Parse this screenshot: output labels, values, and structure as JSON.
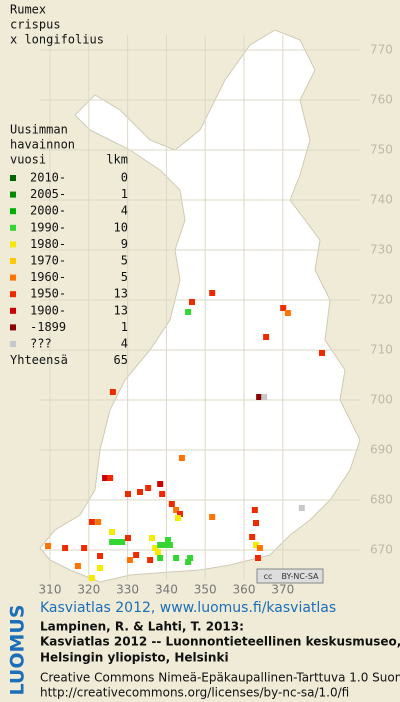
{
  "map": {
    "title": [
      "Rumex",
      "crispus",
      "x longifolius"
    ],
    "legend": {
      "heading": [
        "Uusimman",
        "havainnon",
        "vuosi"
      ],
      "count_heading": "lkm",
      "rows": [
        {
          "label": "2010-",
          "count": 0,
          "color": "#006400"
        },
        {
          "label": "2005-",
          "count": 1,
          "color": "#008a00"
        },
        {
          "label": "2000-",
          "count": 4,
          "color": "#00b000"
        },
        {
          "label": "1990-",
          "count": 10,
          "color": "#33d633"
        },
        {
          "label": "1980-",
          "count": 9,
          "color": "#f5ea00"
        },
        {
          "label": "1970-",
          "count": 5,
          "color": "#ffc800"
        },
        {
          "label": "1960-",
          "count": 5,
          "color": "#ff7300"
        },
        {
          "label": "1950-",
          "count": 13,
          "color": "#ee2a00"
        },
        {
          "label": "1900-",
          "count": 13,
          "color": "#cc0000"
        },
        {
          "label": "-1899",
          "count": 1,
          "color": "#8b0000"
        },
        {
          "label": "???",
          "count": 4,
          "color": "#c8c8c8"
        }
      ],
      "total_label": "Yhteensä",
      "total": 65
    },
    "xticks": [
      310,
      320,
      330,
      340,
      350,
      360,
      370
    ],
    "yticks": [
      670,
      680,
      690,
      700,
      710,
      720,
      730,
      740,
      750,
      760,
      770
    ],
    "points": [
      [
        351.8,
        721.4,
        7
      ],
      [
        346.6,
        719.6,
        7
      ],
      [
        345.6,
        717.6,
        3
      ],
      [
        370.1,
        718.4,
        7
      ],
      [
        371.3,
        717.4,
        6
      ],
      [
        365.7,
        712.6,
        7
      ],
      [
        380.1,
        709.4,
        7
      ],
      [
        363.9,
        700.6,
        9
      ],
      [
        365.2,
        700.6,
        10
      ],
      [
        326.2,
        701.6,
        7
      ],
      [
        344.0,
        688.4,
        6
      ],
      [
        324.2,
        684.4,
        8
      ],
      [
        325.5,
        684.4,
        7
      ],
      [
        330.1,
        681.2,
        7
      ],
      [
        333.2,
        681.6,
        7
      ],
      [
        335.3,
        682.4,
        7
      ],
      [
        338.4,
        683.2,
        8
      ],
      [
        338.9,
        681.2,
        7
      ],
      [
        341.4,
        679.2,
        7
      ],
      [
        342.5,
        678.0,
        6
      ],
      [
        343.5,
        677.2,
        7
      ],
      [
        343.0,
        676.4,
        4
      ],
      [
        351.8,
        676.6,
        6
      ],
      [
        362.8,
        678.0,
        7
      ],
      [
        363.1,
        675.4,
        7
      ],
      [
        374.9,
        678.4,
        10
      ],
      [
        320.8,
        675.6,
        7
      ],
      [
        322.4,
        675.6,
        6
      ],
      [
        326.0,
        673.6,
        4
      ],
      [
        326.0,
        671.6,
        3
      ],
      [
        327.3,
        671.6,
        3
      ],
      [
        328.6,
        671.6,
        3
      ],
      [
        330.1,
        672.4,
        7
      ],
      [
        336.3,
        672.4,
        4
      ],
      [
        337.1,
        670.4,
        4
      ],
      [
        338.4,
        671.0,
        3
      ],
      [
        339.6,
        671.0,
        3
      ],
      [
        340.9,
        671.0,
        3
      ],
      [
        337.8,
        669.6,
        4
      ],
      [
        340.4,
        672.0,
        3
      ],
      [
        309.5,
        670.8,
        6
      ],
      [
        313.9,
        670.4,
        7
      ],
      [
        318.8,
        670.4,
        7
      ],
      [
        322.9,
        668.8,
        7
      ],
      [
        317.2,
        666.8,
        6
      ],
      [
        320.8,
        664.4,
        4
      ],
      [
        322.9,
        666.4,
        4
      ],
      [
        330.6,
        668.0,
        6
      ],
      [
        332.2,
        669.0,
        7
      ],
      [
        335.8,
        668.0,
        7
      ],
      [
        338.4,
        668.4,
        3
      ],
      [
        342.5,
        668.4,
        3
      ],
      [
        346.1,
        668.4,
        3
      ],
      [
        345.6,
        667.6,
        3
      ],
      [
        363.1,
        671.0,
        4
      ],
      [
        364.1,
        670.4,
        6
      ],
      [
        363.6,
        668.4,
        7
      ],
      [
        362.1,
        672.6,
        7
      ]
    ],
    "license_badge": [
      "cc",
      "BY-NC-SA"
    ]
  },
  "footer": {
    "brand": "LUOMUS",
    "headline": "Kasviatlas 2012, www.luomus.fi/kasviatlas",
    "citation": [
      "Lampinen, R. & Lahti, T. 2013:",
      "Kasviatlas 2012 -- Luonnontieteellinen keskusmuseo,",
      "Helsingin yliopisto, Helsinki"
    ],
    "license": [
      "Creative Commons Nimeä-Epäkaupallinen-Tarttuva 1.0 Suomi",
      "http://creativecommons.org/licenses/by-nc-sa/1.0/fi"
    ]
  }
}
